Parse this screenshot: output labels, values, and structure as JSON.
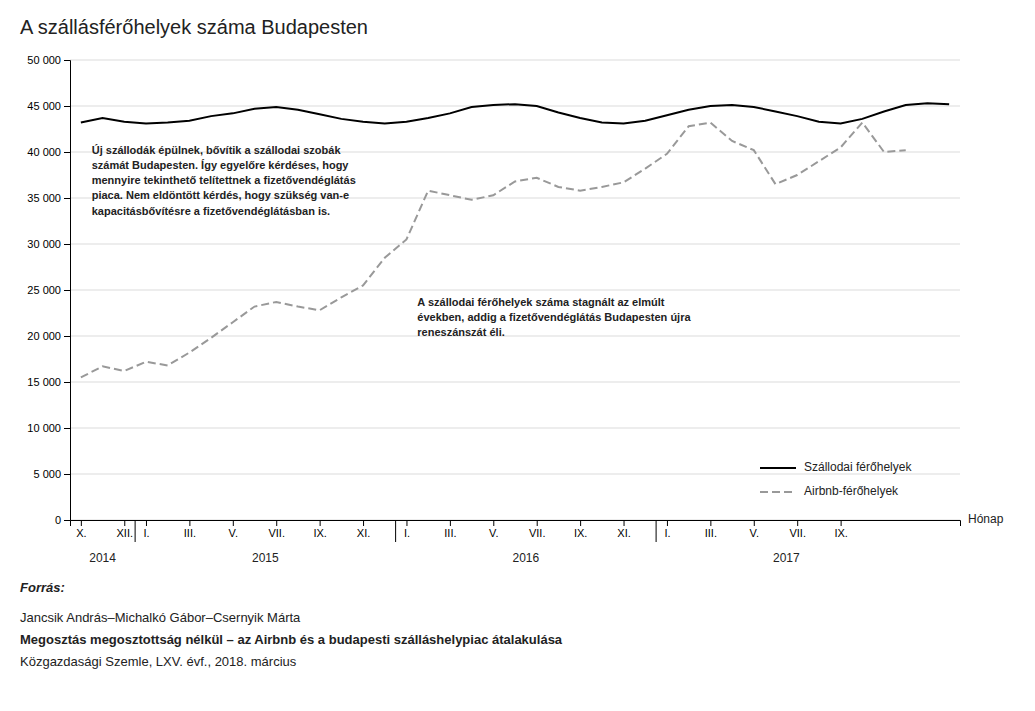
{
  "chart_data": {
    "type": "line",
    "title": "A szállásférőhelyek száma Budapesten",
    "xlabel": "Hónap",
    "categories": [
      "X.",
      null,
      "XII.",
      "I.",
      null,
      "III.",
      null,
      "V.",
      null,
      "VII.",
      null,
      "IX.",
      null,
      "XI.",
      null,
      "I.",
      null,
      "III.",
      null,
      "V.",
      null,
      "VII.",
      null,
      "IX.",
      null,
      "XI.",
      null,
      "I.",
      null,
      "III.",
      null,
      "V.",
      null,
      "VII.",
      null,
      "IX.",
      null,
      null,
      null,
      null,
      null
    ],
    "x_groups": [
      {
        "label": "2014",
        "from": 0,
        "to": 2
      },
      {
        "label": "2015",
        "from": 3,
        "to": 14
      },
      {
        "label": "2016",
        "from": 15,
        "to": 26
      },
      {
        "label": "2017",
        "from": 27,
        "to": 38
      }
    ],
    "series": [
      {
        "name": "Szállodai férőhelyek",
        "color": "#000000",
        "line_style": "solid",
        "values": [
          43200,
          43700,
          43300,
          43100,
          43200,
          43400,
          43900,
          44200,
          44700,
          44900,
          44600,
          44100,
          43600,
          43300,
          43100,
          43300,
          43700,
          44200,
          44900,
          45100,
          45200,
          45000,
          44300,
          43700,
          43200,
          43100,
          43400,
          44000,
          44600,
          45000,
          45100,
          44900,
          44400,
          43900,
          43300,
          43100,
          43600,
          44400,
          45100,
          45300,
          45200
        ]
      },
      {
        "name": "Airbnb-férőhelyek",
        "color": "#999999",
        "line_style": "dashed",
        "values": [
          15500,
          16700,
          16200,
          17200,
          16800,
          18200,
          19800,
          21500,
          23200,
          23700,
          23200,
          22800,
          24200,
          25500,
          28500,
          30500,
          35800,
          35300,
          34800,
          35300,
          36800,
          37200,
          36200,
          35800,
          36200,
          36700,
          38200,
          39800,
          42800,
          43200,
          41200,
          40200,
          36500,
          37500,
          39000,
          40500,
          43200,
          40000,
          40200,
          null,
          null
        ]
      }
    ],
    "ylim": [
      0,
      50000
    ],
    "yticks": [
      0,
      {
        "value": 5000,
        "label": "5 000"
      },
      {
        "value": 10000,
        "label": "10 000"
      },
      {
        "value": 15000,
        "label": "15 000"
      },
      {
        "value": 20000,
        "label": "20 000"
      },
      {
        "value": 25000,
        "label": "25 000"
      },
      {
        "value": 30000,
        "label": "30 000"
      },
      {
        "value": 35000,
        "label": "35 000"
      },
      {
        "value": 40000,
        "label": "40 000"
      },
      {
        "value": 45000,
        "label": "45 000"
      },
      {
        "value": 50000,
        "label": "50 000"
      }
    ],
    "grid": true,
    "legend": "lower right",
    "annotations": [
      "Új szállodák épülnek, bővítik a szállodai szobák\nszámát Budapesten. Így egyelőre kérdéses, hogy\nmennyire tekinthető telítettnek a fizetővendéglátás\npiaca. Nem eldöntött kérdés, hogy szükség van-e\nkapacitásbővítésre a fizetővendéglátásban is.",
      "A szállodai férőhelyek száma stagnált az elmúlt\névekben, addig a fizetővendéglátás Budapesten újra\nreneszánszát éli."
    ],
    "source_label": "Forrás:",
    "source_author": "Jancsik András–Michalkó Gábor–Csernyik Márta",
    "source_title": "Megosztás megosztottság nélkül – az Airbnb és a budapesti szálláshelypiac átalakulása",
    "source_journal": "Közgazdasági Szemle, LXV. évf., 2018. március"
  }
}
